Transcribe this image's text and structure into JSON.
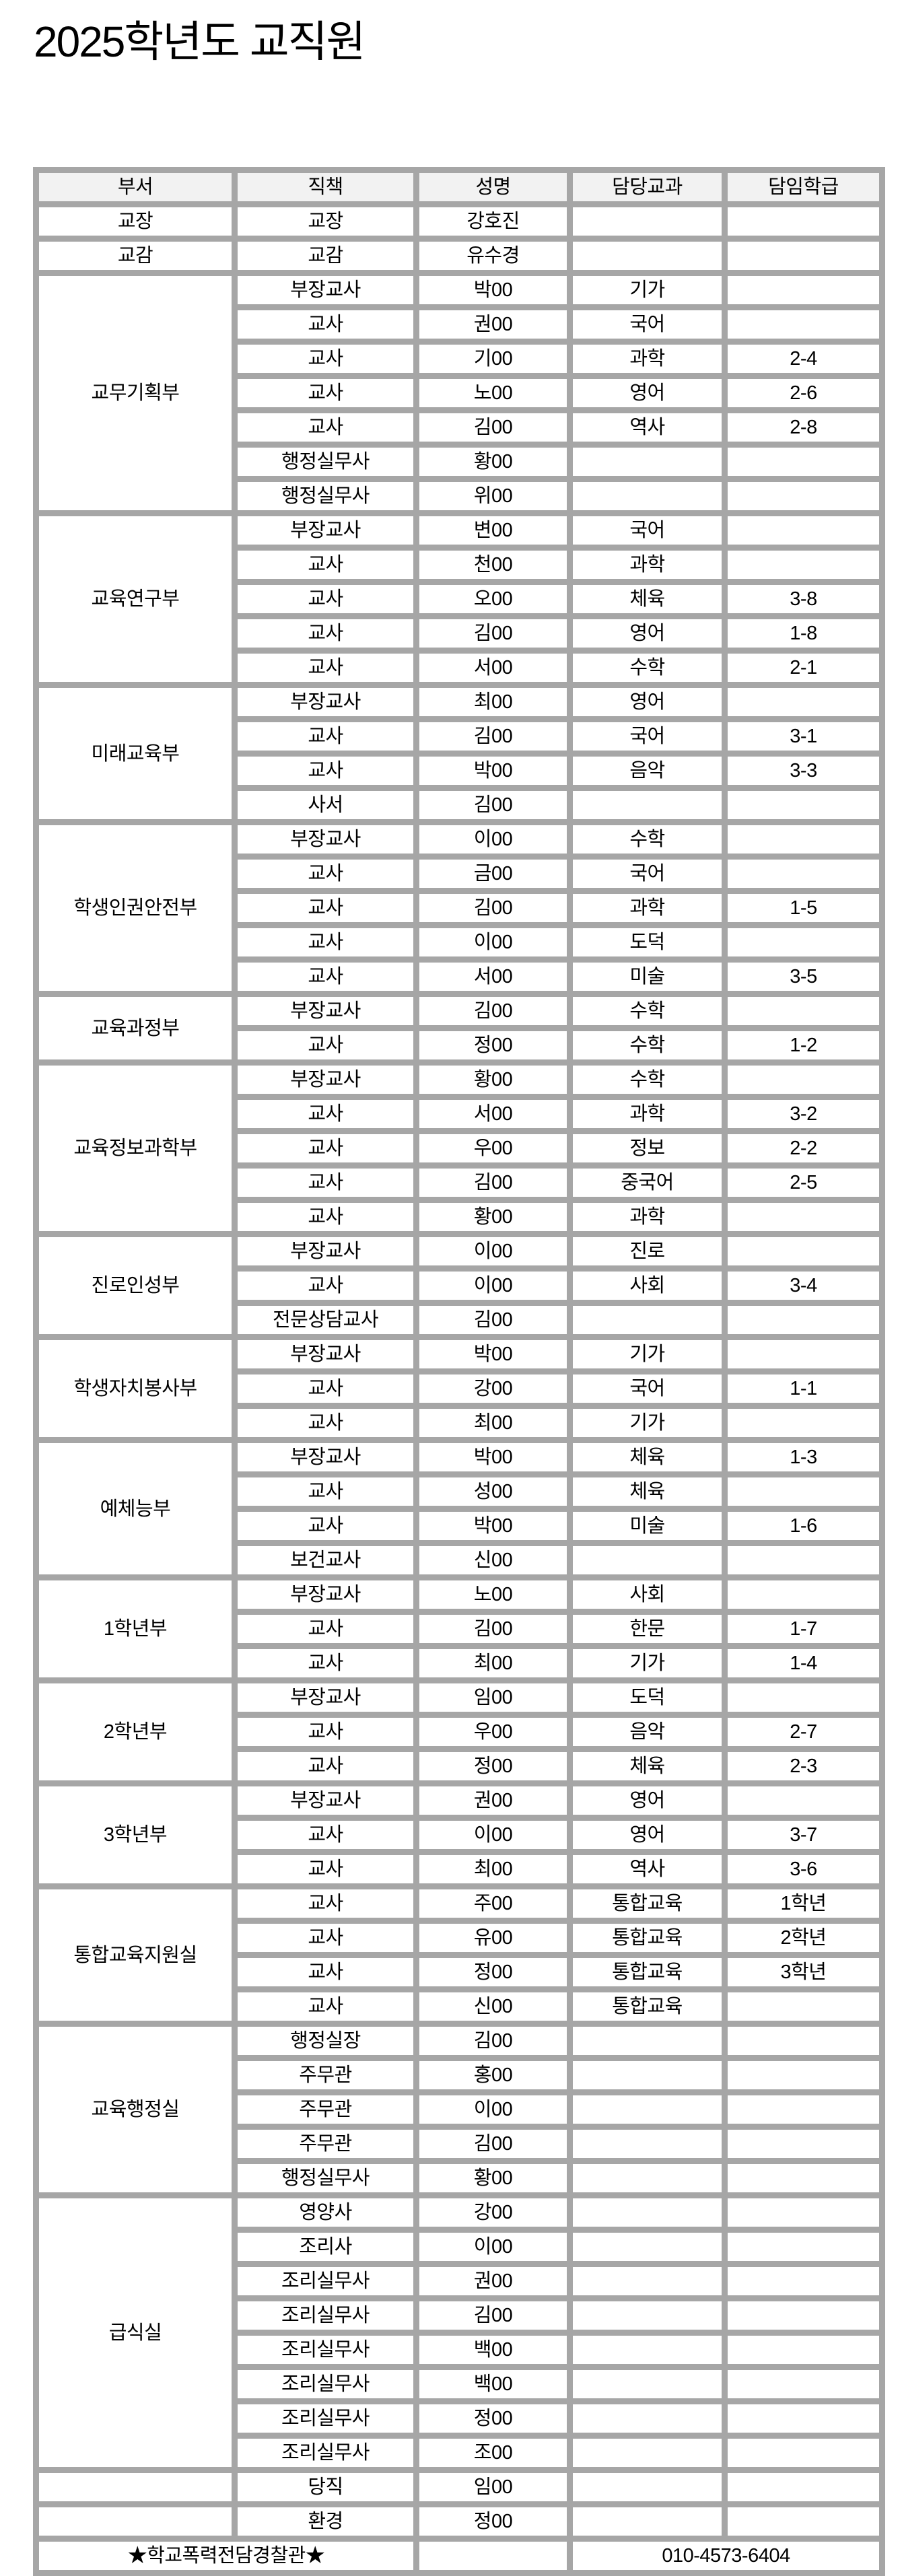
{
  "title": "2025학년도  교직원",
  "header": [
    "부서",
    "직책",
    "성명",
    "담당교과",
    "담임학급"
  ],
  "groups": [
    {
      "dept": "교장",
      "rows": [
        [
          "교장",
          "강호진",
          "",
          ""
        ]
      ]
    },
    {
      "dept": "교감",
      "rows": [
        [
          "교감",
          "유수경",
          "",
          ""
        ]
      ]
    },
    {
      "dept": "교무기획부",
      "rows": [
        [
          "부장교사",
          "박00",
          "기가",
          ""
        ],
        [
          "교사",
          "권00",
          "국어",
          ""
        ],
        [
          "교사",
          "기00",
          "과학",
          "2-4"
        ],
        [
          "교사",
          "노00",
          "영어",
          "2-6"
        ],
        [
          "교사",
          "김00",
          "역사",
          "2-8"
        ],
        [
          "행정실무사",
          "황00",
          "",
          ""
        ],
        [
          "행정실무사",
          "위00",
          "",
          ""
        ]
      ]
    },
    {
      "dept": "교육연구부",
      "rows": [
        [
          "부장교사",
          "변00",
          "국어",
          ""
        ],
        [
          "교사",
          "천00",
          "과학",
          ""
        ],
        [
          "교사",
          "오00",
          "체육",
          "3-8"
        ],
        [
          "교사",
          "김00",
          "영어",
          "1-8"
        ],
        [
          "교사",
          "서00",
          "수학",
          "2-1"
        ]
      ]
    },
    {
      "dept": "미래교육부",
      "rows": [
        [
          "부장교사",
          "최00",
          "영어",
          ""
        ],
        [
          "교사",
          "김00",
          "국어",
          "3-1"
        ],
        [
          "교사",
          "박00",
          "음악",
          "3-3"
        ],
        [
          "사서",
          "김00",
          "",
          ""
        ]
      ]
    },
    {
      "dept": "학생인권안전부",
      "rows": [
        [
          "부장교사",
          "이00",
          "수학",
          ""
        ],
        [
          "교사",
          "금00",
          "국어",
          ""
        ],
        [
          "교사",
          "김00",
          "과학",
          "1-5"
        ],
        [
          "교사",
          "이00",
          "도덕",
          ""
        ],
        [
          "교사",
          "서00",
          "미술",
          "3-5"
        ]
      ]
    },
    {
      "dept": "교육과정부",
      "rows": [
        [
          "부장교사",
          "김00",
          "수학",
          ""
        ],
        [
          "교사",
          "정00",
          "수학",
          "1-2"
        ]
      ]
    },
    {
      "dept": "교육정보과학부",
      "rows": [
        [
          "부장교사",
          "황00",
          "수학",
          ""
        ],
        [
          "교사",
          "서00",
          "과학",
          "3-2"
        ],
        [
          "교사",
          "우00",
          "정보",
          "2-2"
        ],
        [
          "교사",
          "김00",
          "중국어",
          "2-5"
        ],
        [
          "교사",
          "황00",
          "과학",
          ""
        ]
      ]
    },
    {
      "dept": "진로인성부",
      "rows": [
        [
          "부장교사",
          "이00",
          "진로",
          ""
        ],
        [
          "교사",
          "이00",
          "사회",
          "3-4"
        ],
        [
          "전문상담교사",
          "김00",
          "",
          ""
        ]
      ]
    },
    {
      "dept": "학생자치봉사부",
      "rows": [
        [
          "부장교사",
          "박00",
          "기가",
          ""
        ],
        [
          "교사",
          "강00",
          "국어",
          "1-1"
        ],
        [
          "교사",
          "최00",
          "기가",
          ""
        ]
      ]
    },
    {
      "dept": "예체능부",
      "rows": [
        [
          "부장교사",
          "박00",
          "체육",
          "1-3"
        ],
        [
          "교사",
          "성00",
          "체육",
          ""
        ],
        [
          "교사",
          "박00",
          "미술",
          "1-6"
        ],
        [
          "보건교사",
          "신00",
          "",
          ""
        ]
      ]
    },
    {
      "dept": "1학년부",
      "rows": [
        [
          "부장교사",
          "노00",
          "사회",
          ""
        ],
        [
          "교사",
          "김00",
          "한문",
          "1-7"
        ],
        [
          "교사",
          "최00",
          "기가",
          "1-4"
        ]
      ]
    },
    {
      "dept": "2학년부",
      "rows": [
        [
          "부장교사",
          "임00",
          "도덕",
          ""
        ],
        [
          "교사",
          "우00",
          "음악",
          "2-7"
        ],
        [
          "교사",
          "정00",
          "체육",
          "2-3"
        ]
      ]
    },
    {
      "dept": "3학년부",
      "rows": [
        [
          "부장교사",
          "권00",
          "영어",
          ""
        ],
        [
          "교사",
          "이00",
          "영어",
          "3-7"
        ],
        [
          "교사",
          "최00",
          "역사",
          "3-6"
        ]
      ]
    },
    {
      "dept": "통합교육지원실",
      "rows": [
        [
          "교사",
          "주00",
          "통합교육",
          "1학년"
        ],
        [
          "교사",
          "유00",
          "통합교육",
          "2학년"
        ],
        [
          "교사",
          "정00",
          "통합교육",
          "3학년"
        ],
        [
          "교사",
          "신00",
          "통합교육",
          ""
        ]
      ]
    },
    {
      "dept": "교육행정실",
      "rows": [
        [
          "행정실장",
          "김00",
          "",
          ""
        ],
        [
          "주무관",
          "홍00",
          "",
          ""
        ],
        [
          "주무관",
          "이00",
          "",
          ""
        ],
        [
          "주무관",
          "김00",
          "",
          ""
        ],
        [
          "행정실무사",
          "황00",
          "",
          ""
        ]
      ]
    },
    {
      "dept": "급식실",
      "rows": [
        [
          "영양사",
          "강00",
          "",
          ""
        ],
        [
          "조리사",
          "이00",
          "",
          ""
        ],
        [
          "조리실무사",
          "권00",
          "",
          ""
        ],
        [
          "조리실무사",
          "김00",
          "",
          ""
        ],
        [
          "조리실무사",
          "백00",
          "",
          ""
        ],
        [
          "조리실무사",
          "백00",
          "",
          ""
        ],
        [
          "조리실무사",
          "정00",
          "",
          ""
        ],
        [
          "조리실무사",
          "조00",
          "",
          ""
        ]
      ]
    },
    {
      "dept": "",
      "rows": [
        [
          "당직",
          "임00",
          "",
          ""
        ]
      ]
    },
    {
      "dept": "",
      "rows": [
        [
          "환경",
          "정00",
          "",
          ""
        ]
      ]
    }
  ],
  "footer": {
    "label": "★학교폭력전담경찰관★",
    "name": "",
    "phone": "010-4573-6404"
  }
}
